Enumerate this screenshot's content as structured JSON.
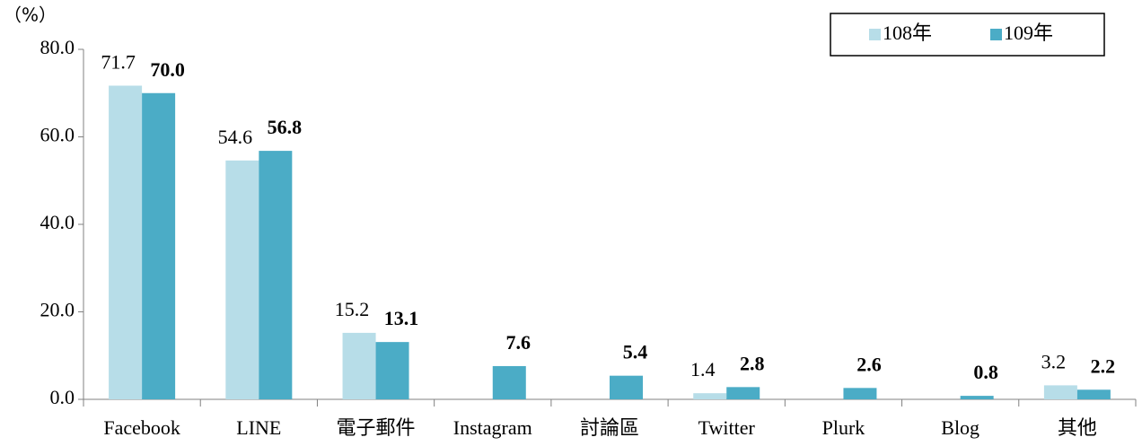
{
  "chart_data": {
    "type": "bar",
    "unit_label": "（%）",
    "categories": [
      "Facebook",
      "LINE",
      "電子郵件",
      "Instagram",
      "討論區",
      "Twitter",
      "Plurk",
      "Blog",
      "其他"
    ],
    "series": [
      {
        "name": "108年",
        "color": "#b7dde8",
        "values": [
          71.7,
          54.6,
          15.2,
          null,
          null,
          1.4,
          null,
          null,
          3.2
        ],
        "value_labels": [
          "71.7",
          "54.6",
          "15.2",
          null,
          null,
          "1.4",
          null,
          null,
          "3.2"
        ]
      },
      {
        "name": "109年",
        "color": "#4bacc6",
        "values": [
          70.0,
          56.8,
          13.1,
          7.6,
          5.4,
          2.8,
          2.6,
          0.8,
          2.2
        ],
        "value_labels": [
          "70.0",
          "56.8",
          "13.1",
          "7.6",
          "5.4",
          "2.8",
          "2.6",
          "0.8",
          "2.2"
        ]
      }
    ],
    "ylim": [
      0,
      80
    ],
    "yticks": [
      {
        "value": 0,
        "label": "0.0"
      },
      {
        "value": 20,
        "label": "20.0"
      },
      {
        "value": 40,
        "label": "40.0"
      },
      {
        "value": 60,
        "label": "60.0"
      },
      {
        "value": 80,
        "label": "80.0"
      }
    ],
    "legend": "top-right"
  }
}
